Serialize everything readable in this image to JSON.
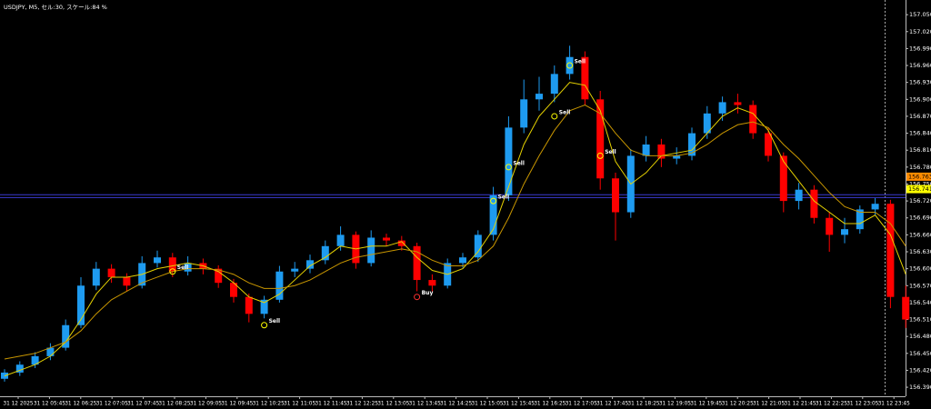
{
  "chart_data": {
    "type": "candlestick",
    "title": "USDJPY, M5, セル:30, スケール:84 %",
    "background": "#000000",
    "up_color": "#1e9bf0",
    "down_color": "#ff0000",
    "open": [
      156.405,
      156.416,
      156.43,
      156.445,
      156.46,
      156.5,
      156.57,
      156.6,
      156.585,
      156.57,
      156.61,
      156.62,
      156.595,
      156.61,
      156.6,
      156.575,
      156.55,
      156.52,
      156.545,
      156.595,
      156.6,
      156.615,
      156.64,
      156.66,
      156.61,
      156.655,
      156.65,
      156.64,
      156.58,
      156.57,
      156.61,
      156.62,
      156.66,
      156.73,
      156.85,
      156.9,
      156.91,
      156.945,
      156.975,
      156.9,
      156.76,
      156.7,
      156.8,
      156.82,
      156.795,
      156.8,
      156.84,
      156.875,
      156.895,
      156.89,
      156.84,
      156.8,
      156.72,
      156.74,
      156.69,
      156.66,
      156.67,
      156.705,
      156.715,
      156.55
    ],
    "high": [
      156.422,
      156.436,
      156.452,
      156.468,
      156.51,
      156.585,
      156.612,
      156.608,
      156.592,
      156.622,
      156.632,
      156.628,
      156.622,
      156.618,
      156.606,
      156.582,
      156.556,
      156.552,
      156.605,
      156.612,
      156.625,
      156.65,
      156.675,
      156.666,
      156.668,
      156.662,
      156.658,
      156.646,
      156.59,
      156.618,
      156.628,
      156.668,
      156.745,
      156.87,
      156.935,
      156.94,
      156.96,
      156.995,
      156.985,
      156.915,
      156.77,
      156.812,
      156.835,
      156.83,
      156.815,
      156.85,
      156.888,
      156.905,
      156.91,
      156.898,
      156.85,
      156.806,
      156.752,
      156.748,
      156.7,
      156.69,
      156.712,
      156.725,
      156.722,
      156.57
    ],
    "low": [
      156.4,
      156.41,
      156.424,
      156.438,
      156.455,
      156.495,
      156.562,
      156.575,
      156.56,
      156.565,
      156.602,
      156.585,
      156.588,
      156.59,
      156.566,
      156.54,
      156.505,
      156.512,
      156.54,
      156.585,
      156.592,
      156.608,
      156.632,
      156.6,
      156.604,
      156.64,
      156.632,
      156.56,
      156.56,
      156.565,
      156.602,
      156.612,
      156.65,
      156.72,
      156.84,
      156.88,
      156.895,
      156.935,
      156.89,
      156.74,
      156.65,
      156.69,
      156.79,
      156.78,
      156.785,
      156.792,
      156.83,
      156.862,
      156.875,
      156.83,
      156.79,
      156.7,
      156.705,
      156.68,
      156.63,
      156.645,
      156.662,
      156.695,
      156.53,
      156.495
    ],
    "close": [
      156.416,
      156.43,
      156.445,
      156.46,
      156.5,
      156.57,
      156.6,
      156.585,
      156.57,
      156.61,
      156.62,
      156.595,
      156.61,
      156.6,
      156.575,
      156.55,
      156.52,
      156.545,
      156.595,
      156.6,
      156.615,
      156.64,
      156.66,
      156.61,
      156.655,
      156.65,
      156.64,
      156.58,
      156.57,
      156.61,
      156.62,
      156.66,
      156.73,
      156.85,
      156.9,
      156.91,
      156.945,
      156.975,
      156.9,
      156.76,
      156.7,
      156.8,
      156.82,
      156.795,
      156.8,
      156.84,
      156.875,
      156.895,
      156.89,
      156.84,
      156.8,
      156.72,
      156.74,
      156.69,
      156.66,
      156.67,
      156.705,
      156.715,
      156.55,
      156.51
    ],
    "series": [
      {
        "color": "#e6d200",
        "values": [
          156.41,
          156.42,
          156.43,
          156.445,
          156.47,
          156.51,
          156.555,
          156.585,
          156.585,
          156.59,
          156.6,
          156.605,
          156.61,
          156.605,
          156.595,
          156.575,
          156.55,
          156.54,
          156.555,
          156.58,
          156.605,
          156.62,
          156.64,
          156.635,
          156.64,
          156.64,
          156.648,
          156.62,
          156.597,
          156.59,
          156.6,
          156.63,
          156.67,
          156.745,
          156.82,
          156.87,
          156.9,
          156.93,
          156.925,
          156.88,
          156.79,
          156.75,
          156.77,
          156.8,
          156.805,
          156.81,
          156.84,
          156.87,
          156.885,
          156.875,
          156.845,
          156.79,
          156.755,
          156.72,
          156.7,
          156.68,
          156.68,
          156.695,
          156.66,
          156.59
        ]
      },
      {
        "color": "#c89600",
        "values": [
          156.44,
          156.445,
          156.45,
          156.46,
          156.47,
          156.49,
          156.52,
          156.545,
          156.56,
          156.575,
          156.585,
          156.595,
          156.6,
          156.6,
          156.598,
          156.59,
          156.575,
          156.565,
          156.565,
          156.57,
          156.58,
          156.595,
          156.61,
          156.62,
          156.625,
          156.63,
          156.635,
          156.63,
          156.615,
          156.605,
          156.605,
          156.615,
          156.64,
          156.69,
          156.75,
          156.8,
          156.845,
          156.88,
          156.89,
          156.875,
          156.84,
          156.81,
          156.8,
          156.8,
          156.8,
          156.805,
          156.82,
          156.84,
          156.855,
          156.86,
          156.85,
          156.82,
          156.795,
          156.765,
          156.735,
          156.71,
          156.7,
          156.7,
          156.68,
          156.64
        ]
      }
    ],
    "annotations": [
      {
        "text": "Sell",
        "candle": 11,
        "value": 156.595,
        "color": "#ffff00"
      },
      {
        "text": "Sell",
        "candle": 17,
        "value": 156.5,
        "color": "#ffff00"
      },
      {
        "text": "Buy",
        "candle": 27,
        "value": 156.55,
        "color": "#ff3030"
      },
      {
        "text": "Sell",
        "candle": 32,
        "value": 156.72,
        "color": "#ffff00"
      },
      {
        "text": "Sell",
        "candle": 33,
        "value": 156.78,
        "color": "#ffff00"
      },
      {
        "text": "Sell",
        "candle": 36,
        "value": 156.87,
        "color": "#ffff00"
      },
      {
        "text": "Sell",
        "candle": 37,
        "value": 156.96,
        "color": "#ffff00"
      },
      {
        "text": "Sell",
        "candle": 39,
        "value": 156.8,
        "color": "#ffff00"
      }
    ],
    "hlines": [
      156.731,
      156.726
    ],
    "hline_color": "#3a3ad0",
    "price_labels": [
      {
        "value": 156.763,
        "color": "#ff8c00"
      },
      {
        "value": 156.741,
        "color": "#ffff00"
      }
    ],
    "ylim": [
      156.374,
      157.076
    ],
    "yticks": [
      {
        "value": 156.39,
        "label": "156.390"
      },
      {
        "value": 156.42,
        "label": "156.420"
      },
      {
        "value": 156.45,
        "label": "156.450"
      },
      {
        "value": 156.48,
        "label": "156.480"
      },
      {
        "value": 156.51,
        "label": "156.510"
      },
      {
        "value": 156.54,
        "label": "156.540"
      },
      {
        "value": 156.57,
        "label": "156.570"
      },
      {
        "value": 156.6,
        "label": "156.600"
      },
      {
        "value": 156.63,
        "label": "156.630"
      },
      {
        "value": 156.66,
        "label": "156.660"
      },
      {
        "value": 156.69,
        "label": "156.690"
      },
      {
        "value": 156.72,
        "label": "156.720"
      },
      {
        "value": 156.75,
        "label": "156.750"
      },
      {
        "value": 156.78,
        "label": "156.780"
      },
      {
        "value": 156.81,
        "label": "156.810"
      },
      {
        "value": 156.84,
        "label": "156.840"
      },
      {
        "value": 156.87,
        "label": "156.870"
      },
      {
        "value": 156.9,
        "label": "156.900"
      },
      {
        "value": 156.93,
        "label": "156.930"
      },
      {
        "value": 156.96,
        "label": "156.960"
      },
      {
        "value": 156.99,
        "label": "156.990"
      },
      {
        "value": 157.02,
        "label": "157.020"
      },
      {
        "value": 157.05,
        "label": "157.050"
      }
    ],
    "x_labels": [
      "31 12 2025",
      "31 12 05:45",
      "31 12 06:25",
      "31 12 07:05",
      "31 12 07:45",
      "31 12 08:25",
      "31 12 09:05",
      "31 12 09:45",
      "31 12 10:25",
      "31 12 11:05",
      "31 12 11:45",
      "31 12 12:25",
      "31 12 13:05",
      "31 12 13:45",
      "31 12 14:25",
      "31 12 15:05",
      "31 12 15:45",
      "31 12 16:25",
      "31 12 17:05",
      "31 12 17:45",
      "31 12 18:25",
      "31 12 19:05",
      "31 12 19:45",
      "31 12 20:25",
      "31 12 21:05",
      "31 12 21:45",
      "31 12 22:25",
      "31 12 23:05",
      "31 12 23:45"
    ]
  }
}
